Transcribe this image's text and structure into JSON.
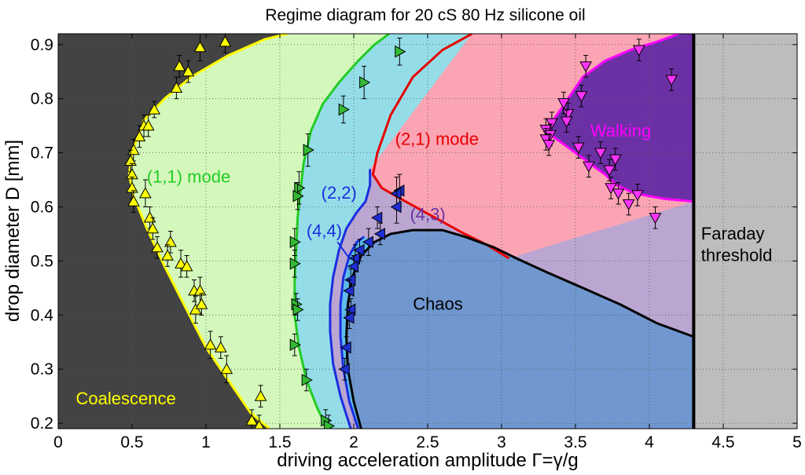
{
  "chart_data": {
    "type": "regime-diagram",
    "title": "Regime diagram for 20 cS 80 Hz silicone oil",
    "xlabel": "driving acceleration amplitude Γ=γ/g",
    "ylabel": "drop diameter D [mm]",
    "xlim": [
      0,
      5
    ],
    "ylim": [
      0.19,
      0.92
    ],
    "xticks": [
      0,
      0.5,
      1,
      1.5,
      2,
      2.5,
      3,
      3.5,
      4,
      4.5,
      5
    ],
    "xtick_labels": [
      "0",
      "0.5",
      "1",
      "1.5",
      "2",
      "2.5",
      "3",
      "3.5",
      "4",
      "4.5",
      "5"
    ],
    "yticks": [
      0.2,
      0.3,
      0.4,
      0.5,
      0.6,
      0.7,
      0.8,
      0.9
    ],
    "ytick_labels": [
      "0.2",
      "0.3",
      "0.4",
      "0.5",
      "0.6",
      "0.7",
      "0.8",
      "0.9"
    ],
    "grid": true,
    "faraday_threshold": 4.3,
    "colors": {
      "coalescence_fill": "#434343",
      "coalescence_line": "#ffff00",
      "mode11_fill": "#d4f8bc",
      "mode11_line": "#22cc22",
      "mode22_fill": "#94dde8",
      "mode22_line": "#1a2ee0",
      "mode44_fill": "#5fbbee",
      "mode43_fill": "#bba6d2",
      "mode21_fill": "#fba4b4",
      "mode21_line": "#e60000",
      "walking_fill": "#6b31a4",
      "walking_line": "#ff00ff",
      "chaos_fill": "#7097cf",
      "chaos_line": "#000000",
      "faraday_fill": "#bdbdbd",
      "faraday_line": "#000000"
    },
    "boundaries": {
      "coalescence": [
        [
          1.43,
          0.19
        ],
        [
          1.3,
          0.22
        ],
        [
          1.15,
          0.28
        ],
        [
          1.0,
          0.34
        ],
        [
          0.85,
          0.42
        ],
        [
          0.72,
          0.49
        ],
        [
          0.6,
          0.56
        ],
        [
          0.51,
          0.62
        ],
        [
          0.48,
          0.66
        ],
        [
          0.5,
          0.7
        ],
        [
          0.58,
          0.76
        ],
        [
          0.72,
          0.8
        ],
        [
          0.9,
          0.84
        ],
        [
          1.15,
          0.88
        ],
        [
          1.4,
          0.91
        ],
        [
          1.55,
          0.92
        ]
      ],
      "mode11": [
        [
          1.82,
          0.19
        ],
        [
          1.75,
          0.23
        ],
        [
          1.68,
          0.28
        ],
        [
          1.63,
          0.34
        ],
        [
          1.6,
          0.4
        ],
        [
          1.6,
          0.46
        ],
        [
          1.61,
          0.52
        ],
        [
          1.62,
          0.58
        ],
        [
          1.64,
          0.63
        ],
        [
          1.66,
          0.68
        ],
        [
          1.71,
          0.74
        ],
        [
          1.79,
          0.79
        ],
        [
          1.9,
          0.83
        ],
        [
          2.03,
          0.87
        ],
        [
          2.14,
          0.9
        ],
        [
          2.24,
          0.92
        ]
      ],
      "mode22": [
        [
          1.98,
          0.19
        ],
        [
          1.91,
          0.25
        ],
        [
          1.86,
          0.31
        ],
        [
          1.84,
          0.37
        ],
        [
          1.84,
          0.42
        ],
        [
          1.86,
          0.47
        ],
        [
          1.9,
          0.52
        ],
        [
          1.95,
          0.56
        ],
        [
          2.02,
          0.59
        ],
        [
          2.08,
          0.61
        ],
        [
          2.11,
          0.64
        ],
        [
          2.11,
          0.67
        ]
      ],
      "mode44": [
        [
          2.03,
          0.19
        ],
        [
          1.97,
          0.24
        ],
        [
          1.93,
          0.3
        ],
        [
          1.91,
          0.36
        ],
        [
          1.91,
          0.42
        ],
        [
          1.93,
          0.47
        ],
        [
          1.97,
          0.51
        ],
        [
          2.02,
          0.535
        ],
        [
          2.07,
          0.545
        ]
      ],
      "chaos": [
        [
          2.05,
          0.19
        ],
        [
          2.0,
          0.24
        ],
        [
          1.96,
          0.3
        ],
        [
          1.95,
          0.36
        ],
        [
          1.96,
          0.42
        ],
        [
          1.99,
          0.47
        ],
        [
          2.05,
          0.51
        ],
        [
          2.14,
          0.535
        ],
        [
          2.25,
          0.55
        ],
        [
          2.4,
          0.557
        ],
        [
          2.6,
          0.557
        ],
        [
          2.75,
          0.545
        ],
        [
          2.95,
          0.525
        ],
        [
          3.1,
          0.505
        ],
        [
          3.3,
          0.48
        ],
        [
          3.55,
          0.45
        ],
        [
          3.8,
          0.42
        ],
        [
          4.05,
          0.385
        ],
        [
          4.3,
          0.36
        ]
      ],
      "mode21": [
        [
          2.8,
          0.92
        ],
        [
          2.6,
          0.89
        ],
        [
          2.4,
          0.84
        ],
        [
          2.25,
          0.77
        ],
        [
          2.16,
          0.7
        ],
        [
          2.13,
          0.66
        ],
        [
          2.19,
          0.635
        ],
        [
          2.35,
          0.61
        ],
        [
          2.55,
          0.58
        ],
        [
          2.75,
          0.55
        ],
        [
          2.9,
          0.53
        ],
        [
          3.05,
          0.505
        ]
      ],
      "walking": [
        [
          4.3,
          0.61
        ],
        [
          4.1,
          0.615
        ],
        [
          3.9,
          0.625
        ],
        [
          3.78,
          0.64
        ],
        [
          3.7,
          0.66
        ],
        [
          3.55,
          0.69
        ],
        [
          3.4,
          0.72
        ],
        [
          3.32,
          0.735
        ],
        [
          3.35,
          0.76
        ],
        [
          3.45,
          0.8
        ],
        [
          3.55,
          0.84
        ],
        [
          3.7,
          0.87
        ],
        [
          3.87,
          0.89
        ],
        [
          4.05,
          0.905
        ],
        [
          4.2,
          0.92
        ]
      ]
    },
    "series": [
      {
        "marker": "triangle-up",
        "color": "#ffff00",
        "points": [
          [
            1.13,
            0.905,
            0.02
          ],
          [
            0.96,
            0.895,
            0.025
          ],
          [
            0.82,
            0.86,
            0.02
          ],
          [
            0.88,
            0.85,
            0.02
          ],
          [
            0.8,
            0.82,
            0.02
          ],
          [
            0.65,
            0.78,
            0.015
          ],
          [
            0.58,
            0.75,
            0.02
          ],
          [
            0.61,
            0.75,
            0.02
          ],
          [
            0.55,
            0.73,
            0.02
          ],
          [
            0.51,
            0.705,
            0.02
          ],
          [
            0.49,
            0.685,
            0.02
          ],
          [
            0.5,
            0.66,
            0.02
          ],
          [
            0.5,
            0.635,
            0.02
          ],
          [
            0.51,
            0.61,
            0.02
          ],
          [
            0.59,
            0.625,
            0.025
          ],
          [
            0.62,
            0.58,
            0.02
          ],
          [
            0.64,
            0.56,
            0.02
          ],
          [
            0.76,
            0.535,
            0.02
          ],
          [
            0.67,
            0.525,
            0.02
          ],
          [
            0.74,
            0.51,
            0.02
          ],
          [
            0.83,
            0.495,
            0.025
          ],
          [
            0.87,
            0.49,
            0.02
          ],
          [
            0.92,
            0.445,
            0.02
          ],
          [
            0.96,
            0.445,
            0.025
          ],
          [
            0.93,
            0.41,
            0.025
          ],
          [
            0.97,
            0.42,
            0.02
          ],
          [
            1.03,
            0.345,
            0.025
          ],
          [
            1.1,
            0.34,
            0.02
          ],
          [
            1.14,
            0.3,
            0.025
          ],
          [
            1.37,
            0.25,
            0.02
          ],
          [
            1.31,
            0.205,
            0.02
          ],
          [
            1.36,
            0.195,
            0.02
          ]
        ]
      },
      {
        "marker": "triangle-right",
        "color": "#33bb33",
        "points": [
          [
            2.31,
            0.887,
            0.025
          ],
          [
            2.07,
            0.83,
            0.03
          ],
          [
            1.93,
            0.78,
            0.025
          ],
          [
            1.69,
            0.705,
            0.03
          ],
          [
            1.63,
            0.635,
            0.03
          ],
          [
            1.62,
            0.62,
            0.025
          ],
          [
            1.6,
            0.535,
            0.025
          ],
          [
            1.6,
            0.495,
            0.025
          ],
          [
            1.61,
            0.42,
            0.02
          ],
          [
            1.62,
            0.41,
            0.02
          ],
          [
            1.6,
            0.345,
            0.02
          ],
          [
            1.68,
            0.28,
            0.02
          ],
          [
            1.81,
            0.205,
            0.02
          ],
          [
            1.83,
            0.195,
            0.02
          ]
        ]
      },
      {
        "marker": "triangle-left",
        "color": "#1e2ed0",
        "points": [
          [
            2.31,
            0.63,
            0.03
          ],
          [
            2.29,
            0.625,
            0.03
          ],
          [
            2.29,
            0.6,
            0.03
          ],
          [
            2.16,
            0.58,
            0.02
          ],
          [
            2.18,
            0.55,
            0.02
          ],
          [
            2.1,
            0.535,
            0.025
          ],
          [
            2.04,
            0.52,
            0.02
          ],
          [
            2.01,
            0.505,
            0.025
          ],
          [
            2.0,
            0.49,
            0.02
          ],
          [
            1.98,
            0.465,
            0.02
          ],
          [
            1.97,
            0.445,
            0.02
          ],
          [
            1.98,
            0.41,
            0.02
          ],
          [
            1.97,
            0.395,
            0.02
          ],
          [
            1.95,
            0.34,
            0.02
          ],
          [
            1.94,
            0.3,
            0.02
          ]
        ]
      },
      {
        "marker": "triangle-down",
        "color": "#ff33ff",
        "points": [
          [
            3.93,
            0.89,
            0.02
          ],
          [
            3.57,
            0.86,
            0.02
          ],
          [
            4.15,
            0.835,
            0.02
          ],
          [
            3.54,
            0.805,
            0.02
          ],
          [
            3.42,
            0.792,
            0.02
          ],
          [
            3.45,
            0.772,
            0.02
          ],
          [
            3.34,
            0.755,
            0.02
          ],
          [
            3.44,
            0.758,
            0.02
          ],
          [
            3.3,
            0.743,
            0.02
          ],
          [
            3.33,
            0.733,
            0.02
          ],
          [
            3.3,
            0.725,
            0.02
          ],
          [
            3.32,
            0.715,
            0.02
          ],
          [
            3.52,
            0.71,
            0.02
          ],
          [
            3.67,
            0.7,
            0.02
          ],
          [
            3.77,
            0.688,
            0.02
          ],
          [
            3.59,
            0.675,
            0.02
          ],
          [
            3.73,
            0.668,
            0.02
          ],
          [
            3.74,
            0.635,
            0.02
          ],
          [
            3.79,
            0.625,
            0.02
          ],
          [
            3.92,
            0.622,
            0.02
          ],
          [
            3.86,
            0.605,
            0.02
          ],
          [
            4.04,
            0.58,
            0.02
          ]
        ]
      }
    ],
    "annotations": [
      {
        "text": "Coalescence",
        "x": 0.12,
        "y": 0.235,
        "color": "#ffff00"
      },
      {
        "text": "(1,1) mode",
        "x": 0.6,
        "y": 0.645,
        "color": "#22cc22"
      },
      {
        "text": "(2,1) mode",
        "x": 2.28,
        "y": 0.715,
        "color": "#e60000"
      },
      {
        "text": "(2,2)",
        "x": 1.78,
        "y": 0.615,
        "color": "#1a2ee0"
      },
      {
        "text": "(4,4)",
        "x": 1.68,
        "y": 0.545,
        "color": "#1a2ee0"
      },
      {
        "text": "(4,3)",
        "x": 2.38,
        "y": 0.575,
        "color": "#6b31a4"
      },
      {
        "text": "Walking",
        "x": 3.6,
        "y": 0.73,
        "color": "#ff00ff"
      },
      {
        "text": "Chaos",
        "x": 2.4,
        "y": 0.41,
        "color": "#000000"
      },
      {
        "text": "Faraday",
        "x": 4.35,
        "y": 0.54,
        "color": "#000000"
      },
      {
        "text": "threshold",
        "x": 4.35,
        "y": 0.5,
        "color": "#000000"
      }
    ]
  }
}
